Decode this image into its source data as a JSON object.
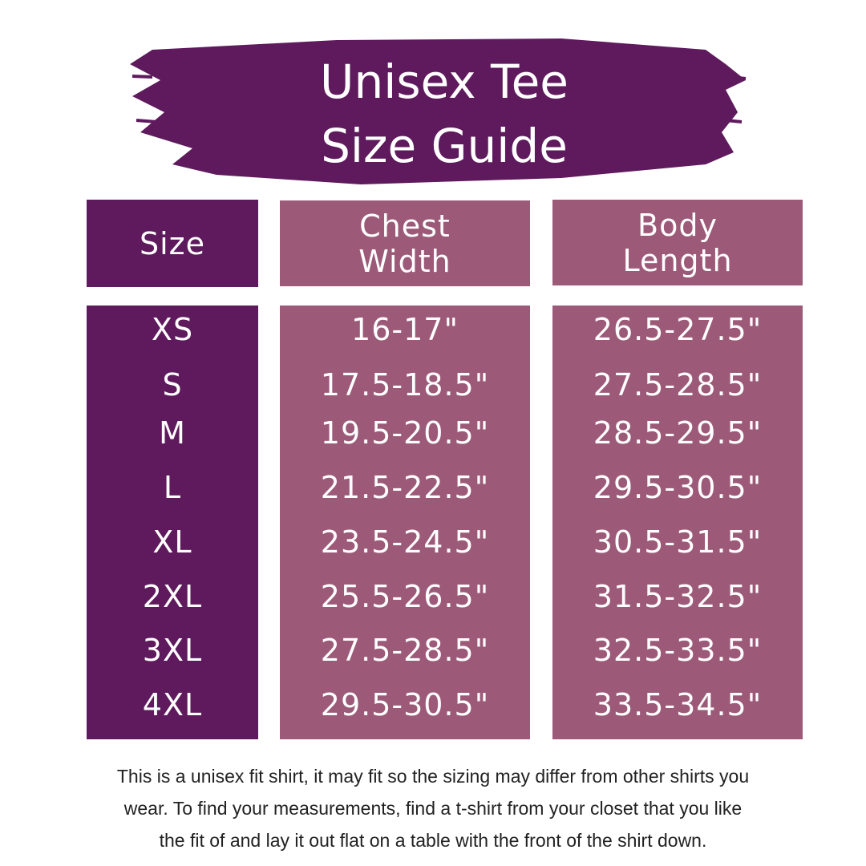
{
  "title": {
    "line1": "Unisex Tee",
    "line2": "Size Guide"
  },
  "colors": {
    "dark_purple": "#5e1a5c",
    "mauve": "#9c5a78"
  },
  "headers": {
    "size": "Size",
    "chest": "Chest Width",
    "body": "Body Length"
  },
  "rows": [
    {
      "size": "XS",
      "chest": "16-17\"",
      "body": "26.5-27.5\""
    },
    {
      "size": "S",
      "chest": "17.5-18.5\"",
      "body": "27.5-28.5\""
    },
    {
      "size": "M",
      "chest": "19.5-20.5\"",
      "body": "28.5-29.5\""
    },
    {
      "size": "L",
      "chest": "21.5-22.5\"",
      "body": "29.5-30.5\""
    },
    {
      "size": "XL",
      "chest": "23.5-24.5\"",
      "body": "30.5-31.5\""
    },
    {
      "size": "2XL",
      "chest": "25.5-26.5\"",
      "body": "31.5-32.5\""
    },
    {
      "size": "3XL",
      "chest": "27.5-28.5\"",
      "body": "32.5-33.5\""
    },
    {
      "size": "4XL",
      "chest": "29.5-30.5\"",
      "body": "33.5-34.5\""
    }
  ],
  "footer": {
    "line1": "This is a unisex fit shirt, it may fit so the sizing may differ from other shirts you",
    "line2": "wear. To find your measurements, find a t-shirt from your closet that you like",
    "line3": "the fit of and lay it out flat on a table with the front of the shirt down."
  }
}
